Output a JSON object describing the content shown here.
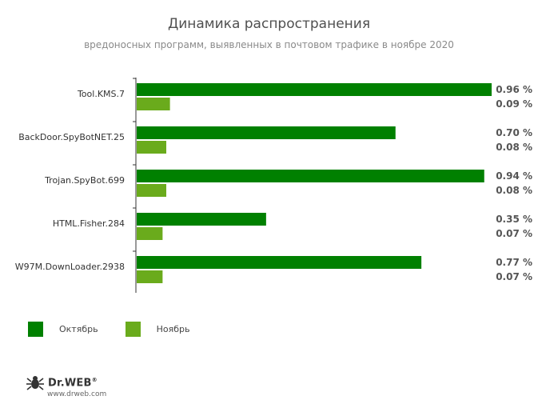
{
  "title": "Динамика распространения",
  "subtitle": "вредоносных программ, выявленных в почтовом трафике в ноябре 2020",
  "colors": {
    "october": "#008000",
    "november": "#6aab1c",
    "text": "#505050"
  },
  "chart_data": {
    "type": "bar",
    "orientation": "horizontal",
    "categories": [
      "Tool.KMS.7",
      "BackDoor.SpyBotNET.25",
      "Trojan.SpyBot.699",
      "HTML.Fisher.284",
      "W97M.DownLoader.2938"
    ],
    "series": [
      {
        "name": "Октябрь",
        "values": [
          0.96,
          0.7,
          0.94,
          0.35,
          0.77
        ],
        "labels": [
          "0.96 %",
          "0.70 %",
          "0.94 %",
          "0.35 %",
          "0.77 %"
        ]
      },
      {
        "name": "Ноябрь",
        "values": [
          0.09,
          0.08,
          0.08,
          0.07,
          0.07
        ],
        "labels": [
          "0.09 %",
          "0.08 %",
          "0.08 %",
          "0.07 %",
          "0.07 %"
        ]
      }
    ],
    "xlim": [
      0,
      0.96
    ],
    "legend_position": "bottom-left",
    "grid": false
  },
  "logo": {
    "brand": "Dr.WEB",
    "reg": "®",
    "site": "www.drweb.com"
  }
}
